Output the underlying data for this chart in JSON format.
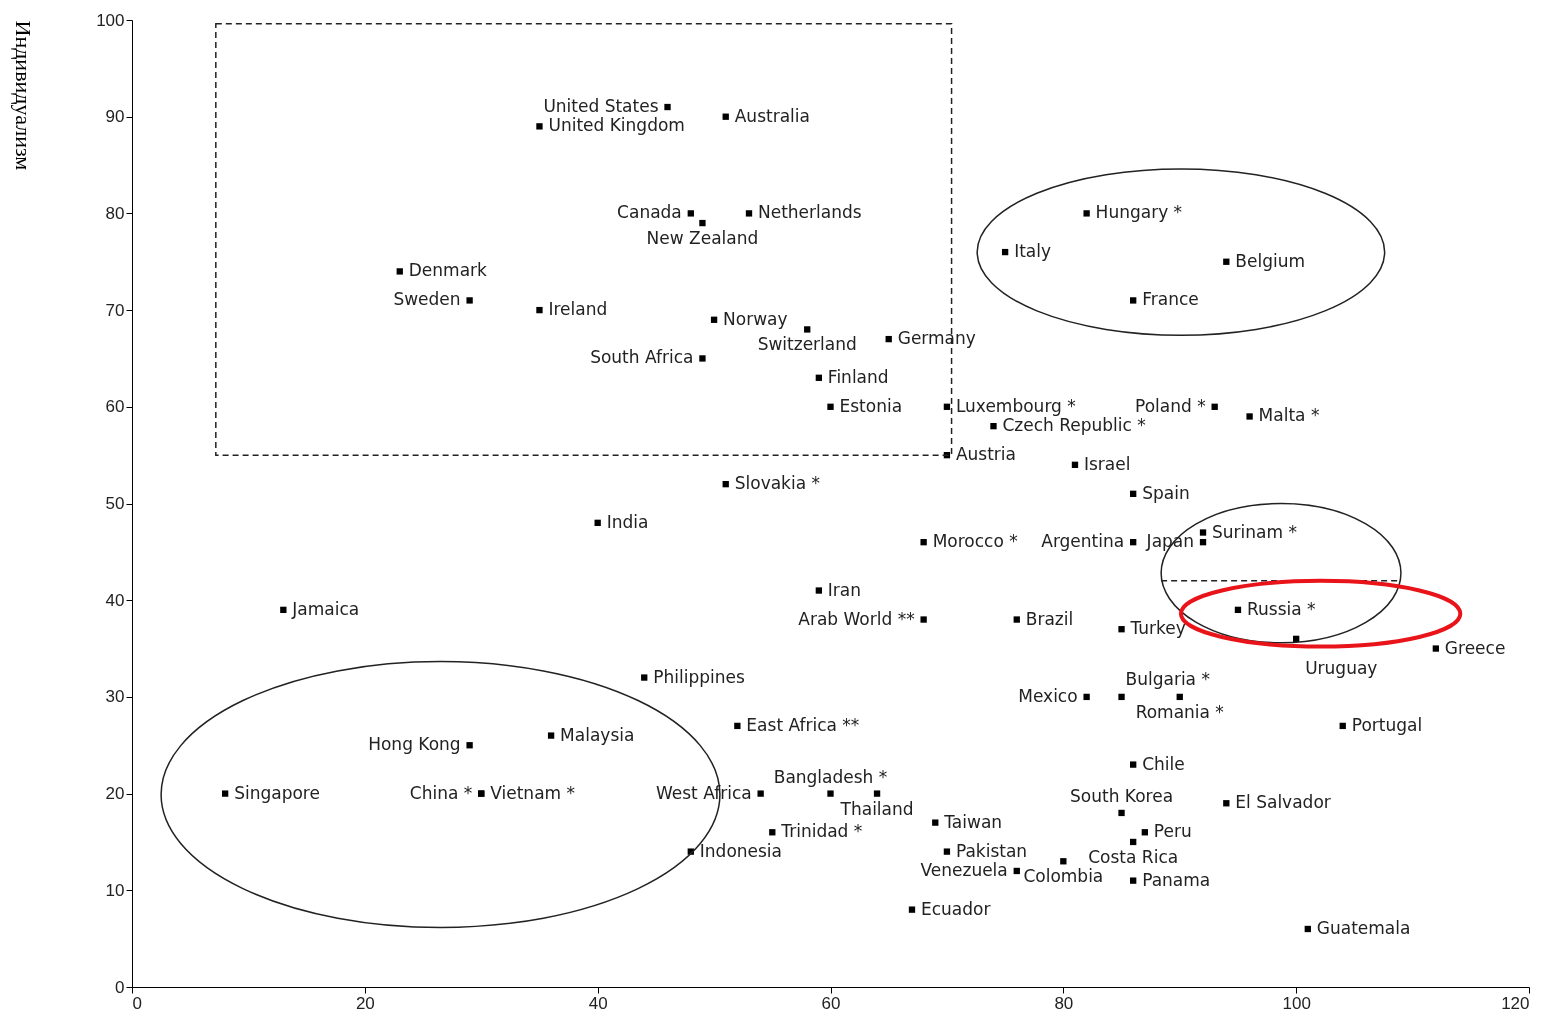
{
  "chart_data": {
    "type": "scatter",
    "ylabel": "Индивидуализм",
    "marker": "square",
    "color": "#000000",
    "grid": false,
    "xlim": [
      0,
      120
    ],
    "xticks": [
      0,
      20,
      40,
      60,
      80,
      100,
      120
    ],
    "ylim": [
      0,
      100
    ],
    "yticks": [
      0,
      10,
      20,
      30,
      40,
      50,
      60,
      70,
      80,
      90,
      100
    ],
    "x": [
      46,
      51,
      35,
      48,
      49,
      53,
      23,
      29,
      35,
      50,
      58,
      65,
      49,
      59,
      60,
      70,
      74,
      70,
      81,
      86,
      51,
      40,
      82,
      75,
      94,
      86,
      93,
      96,
      68,
      86,
      92,
      92,
      95,
      59,
      76,
      68,
      85,
      100,
      112,
      13,
      44,
      82,
      85,
      90,
      104,
      52,
      36,
      29,
      8,
      30,
      30,
      48,
      54,
      60,
      64,
      55,
      69,
      70,
      86,
      94,
      85,
      87,
      86,
      80,
      76,
      86,
      67,
      101
    ],
    "values": [
      91,
      90,
      89,
      80,
      79,
      80,
      74,
      71,
      70,
      69,
      68,
      67,
      65,
      63,
      60,
      60,
      58,
      55,
      54,
      51,
      52,
      48,
      80,
      76,
      75,
      71,
      60,
      59,
      46,
      46,
      47,
      46,
      39,
      41,
      38,
      38,
      37,
      36,
      35,
      39,
      32,
      30,
      30,
      30,
      27,
      27,
      26,
      25,
      20,
      20,
      20,
      14,
      20,
      20,
      20,
      16,
      17,
      14,
      23,
      19,
      18,
      16,
      15,
      13,
      12,
      11,
      8,
      6
    ],
    "value_labels": [
      "United States",
      "Australia",
      "United Kingdom",
      "Canada",
      "New Zealand",
      "Netherlands",
      "Denmark",
      "Sweden",
      "Ireland",
      "Norway",
      "Switzerland",
      "Germany",
      "South Africa",
      "Finland",
      "Estonia",
      "Luxembourg *",
      "Czech Republic *",
      "Austria",
      "Israel",
      "Spain",
      "Slovakia *",
      "India",
      "Hungary *",
      "Italy",
      "Belgium",
      "France",
      "Poland *",
      "Malta *",
      "Morocco *",
      "Argentina",
      "Surinam *",
      "Japan",
      "Russia *",
      "Iran",
      "Brazil",
      "Arab World **",
      "Turkey",
      "Uruguay",
      "Greece",
      "Jamaica",
      "Philippines",
      "Mexico",
      "Bulgaria *",
      "Romania *",
      "Portugal",
      "East Africa **",
      "Malaysia",
      "Hong Kong",
      "Singapore",
      "Vietnam *",
      "China *",
      "Indonesia",
      "West Africa",
      "Bangladesh *",
      "Thailand",
      "Trinidad *",
      "Taiwan",
      "Pakistan",
      "Chile",
      "El Salvador",
      "South Korea",
      "Peru",
      "Costa Rica",
      "Colombia",
      "Venezuela",
      "Panama",
      "Ecuador",
      "Guatemala"
    ]
  }
}
